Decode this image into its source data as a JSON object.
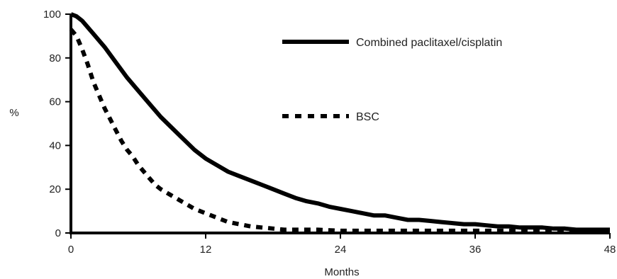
{
  "chart_data": {
    "type": "line",
    "ylabel": "%",
    "xlabel": "Months",
    "xlim": [
      0,
      48
    ],
    "ylim": [
      0,
      100
    ],
    "x_ticks": [
      0,
      12,
      24,
      36,
      48
    ],
    "y_ticks": [
      0,
      20,
      40,
      60,
      80,
      100
    ],
    "x_tick_labels": [
      "0",
      "12",
      "24",
      "36",
      "48"
    ],
    "y_tick_labels": [
      "0",
      "20",
      "40",
      "60",
      "80",
      "100"
    ],
    "grid": false,
    "legend_position": "top-right",
    "series": [
      {
        "name": "Combined paclitaxel/cisplatin",
        "style": "solid",
        "color": "#000000",
        "points": [
          [
            0,
            100
          ],
          [
            0.5,
            99
          ],
          [
            1,
            97
          ],
          [
            2,
            91
          ],
          [
            3,
            85
          ],
          [
            4,
            78
          ],
          [
            5,
            71
          ],
          [
            6,
            65
          ],
          [
            7,
            59
          ],
          [
            8,
            53
          ],
          [
            9,
            48
          ],
          [
            10,
            43
          ],
          [
            11,
            38
          ],
          [
            12,
            34
          ],
          [
            13,
            31
          ],
          [
            14,
            28
          ],
          [
            15,
            26
          ],
          [
            16,
            24
          ],
          [
            17,
            22
          ],
          [
            18,
            20
          ],
          [
            19,
            18
          ],
          [
            20,
            16
          ],
          [
            21,
            14.5
          ],
          [
            22,
            13.5
          ],
          [
            23,
            12
          ],
          [
            24,
            11
          ],
          [
            25,
            10
          ],
          [
            26,
            9
          ],
          [
            27,
            8
          ],
          [
            28,
            8
          ],
          [
            29,
            7
          ],
          [
            30,
            6
          ],
          [
            31,
            6
          ],
          [
            32,
            5.5
          ],
          [
            33,
            5
          ],
          [
            34,
            4.5
          ],
          [
            35,
            4
          ],
          [
            36,
            4
          ],
          [
            37,
            3.5
          ],
          [
            38,
            3
          ],
          [
            39,
            3
          ],
          [
            40,
            2.5
          ],
          [
            41,
            2.5
          ],
          [
            42,
            2.5
          ],
          [
            43,
            2
          ],
          [
            44,
            2
          ],
          [
            45,
            1.5
          ],
          [
            46,
            1.5
          ],
          [
            47,
            1.5
          ],
          [
            48,
            1.5
          ]
        ]
      },
      {
        "name": "BSC",
        "style": "dashed",
        "color": "#000000",
        "points": [
          [
            0,
            93
          ],
          [
            0.5,
            90
          ],
          [
            1,
            84
          ],
          [
            1.5,
            77
          ],
          [
            2,
            69
          ],
          [
            2.5,
            63
          ],
          [
            3,
            57
          ],
          [
            3.5,
            52
          ],
          [
            4,
            47
          ],
          [
            4.5,
            42
          ],
          [
            5,
            38
          ],
          [
            5.5,
            35
          ],
          [
            6,
            31
          ],
          [
            6.5,
            28
          ],
          [
            7,
            25
          ],
          [
            7.5,
            22
          ],
          [
            8,
            20
          ],
          [
            9,
            17
          ],
          [
            10,
            14
          ],
          [
            11,
            11
          ],
          [
            12,
            9
          ],
          [
            13,
            7
          ],
          [
            14,
            5
          ],
          [
            15,
            4
          ],
          [
            16,
            3
          ],
          [
            17,
            2.5
          ],
          [
            18,
            2
          ],
          [
            19,
            1.5
          ],
          [
            20,
            1.5
          ],
          [
            22,
            1.5
          ],
          [
            24,
            1
          ],
          [
            28,
            1
          ],
          [
            32,
            1
          ],
          [
            36,
            1
          ],
          [
            40,
            1
          ],
          [
            44,
            1
          ],
          [
            48,
            1
          ]
        ]
      }
    ]
  }
}
